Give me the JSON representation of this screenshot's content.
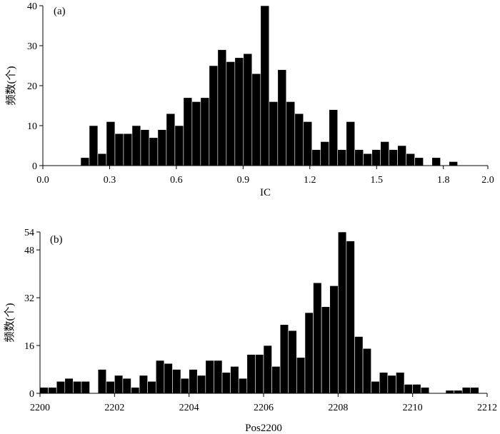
{
  "chart_data": [
    {
      "type": "bar",
      "panel_label": "(a)",
      "xlabel": "IC",
      "ylabel": "频数(个)",
      "xlim": [
        0.0,
        2.0
      ],
      "ylim": [
        0,
        40
      ],
      "xticks": [
        "0.0",
        "0.3",
        "0.6",
        "0.9",
        "1.2",
        "1.5",
        "1.8",
        "2.0"
      ],
      "yticks": [
        "0",
        "10",
        "20",
        "30",
        "40"
      ],
      "bin_start": 0.17,
      "bin_width": 0.0385,
      "values": [
        2,
        10,
        3,
        11,
        8,
        8,
        10,
        9,
        7,
        9,
        13,
        10,
        17,
        16,
        17,
        25,
        29,
        26,
        27,
        28,
        23,
        40,
        16,
        24,
        16,
        13,
        11,
        4,
        6,
        14,
        4,
        11,
        4,
        3,
        4,
        6,
        4,
        5,
        3,
        2,
        0,
        2,
        0,
        1
      ]
    },
    {
      "type": "bar",
      "panel_label": "(b)",
      "xlabel": "Pos2200",
      "ylabel": "频数(个)",
      "xlim": [
        2200,
        2212
      ],
      "ylim": [
        0,
        54
      ],
      "xticks": [
        "2200",
        "2202",
        "2204",
        "2206",
        "2208",
        "2210",
        "2212"
      ],
      "yticks": [
        "0",
        "16",
        "32",
        "48",
        "54"
      ],
      "bin_start": 2200.0,
      "bin_width": 0.2222,
      "values": [
        2,
        2,
        4,
        5,
        4,
        4,
        0,
        8,
        4,
        6,
        5,
        2,
        6,
        4,
        11,
        10,
        8,
        5,
        8,
        6,
        11,
        11,
        7,
        9,
        5,
        13,
        13,
        16,
        9,
        23,
        21,
        12,
        27,
        37,
        29,
        36,
        54,
        51,
        19,
        15,
        4,
        7,
        6,
        7,
        3,
        3,
        2,
        0,
        0,
        1,
        1,
        2,
        2,
        0
      ]
    }
  ]
}
